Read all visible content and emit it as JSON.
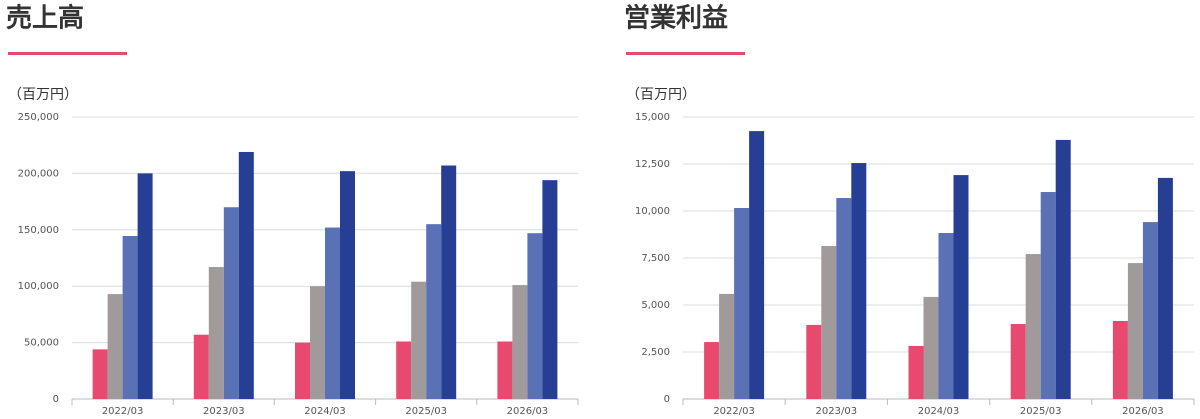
{
  "chart_data": [
    {
      "type": "bar",
      "title": "売上高",
      "ylabel": "（百万円）",
      "categories": [
        "2022/03",
        "2023/03",
        "2024/03",
        "2025/03",
        "2026/03"
      ],
      "series": [
        {
          "color": "#e84a6f",
          "values": [
            44000,
            57000,
            50000,
            51000,
            51000
          ]
        },
        {
          "color": "#a09a9a",
          "values": [
            93000,
            117000,
            100000,
            104000,
            101000
          ]
        },
        {
          "color": "#5a72b5",
          "values": [
            144500,
            170000,
            152000,
            155000,
            147000
          ]
        },
        {
          "color": "#263f94",
          "values": [
            200000,
            219000,
            202000,
            207000,
            194000
          ]
        }
      ],
      "ylim": [
        0,
        250000
      ],
      "yticks": [
        0,
        {
          "value": 50000,
          "label": "50,000"
        },
        {
          "value": 100000,
          "label": "100,000"
        },
        {
          "value": 150000,
          "label": "150,000"
        },
        {
          "value": 200000,
          "label": "200,000"
        },
        {
          "value": 250000,
          "label": "250,000"
        }
      ],
      "grid": true
    },
    {
      "type": "bar",
      "title": "営業利益",
      "ylabel": "（百万円）",
      "categories": [
        "2022/03",
        "2023/03",
        "2024/03",
        "2025/03",
        "2026/03"
      ],
      "series": [
        {
          "color": "#e84a6f",
          "values": [
            3030,
            3940,
            2820,
            3990,
            4150
          ]
        },
        {
          "color": "#a09a9a",
          "values": [
            5590,
            8140,
            5430,
            7710,
            7230
          ]
        },
        {
          "color": "#5a72b5",
          "values": [
            10160,
            10690,
            8830,
            11010,
            9410
          ]
        },
        {
          "color": "#263f94",
          "values": [
            14250,
            12550,
            11910,
            13780,
            11760
          ]
        }
      ],
      "ylim": [
        0,
        15000
      ],
      "yticks": [
        0,
        {
          "value": 2500,
          "label": "2,500"
        },
        {
          "value": 5000,
          "label": "5,000"
        },
        {
          "value": 7500,
          "label": "7,500"
        },
        {
          "value": 10000,
          "label": "10,000"
        },
        {
          "value": 12500,
          "label": "12,500"
        },
        {
          "value": 15000,
          "label": "15,000"
        }
      ],
      "grid": true
    }
  ]
}
